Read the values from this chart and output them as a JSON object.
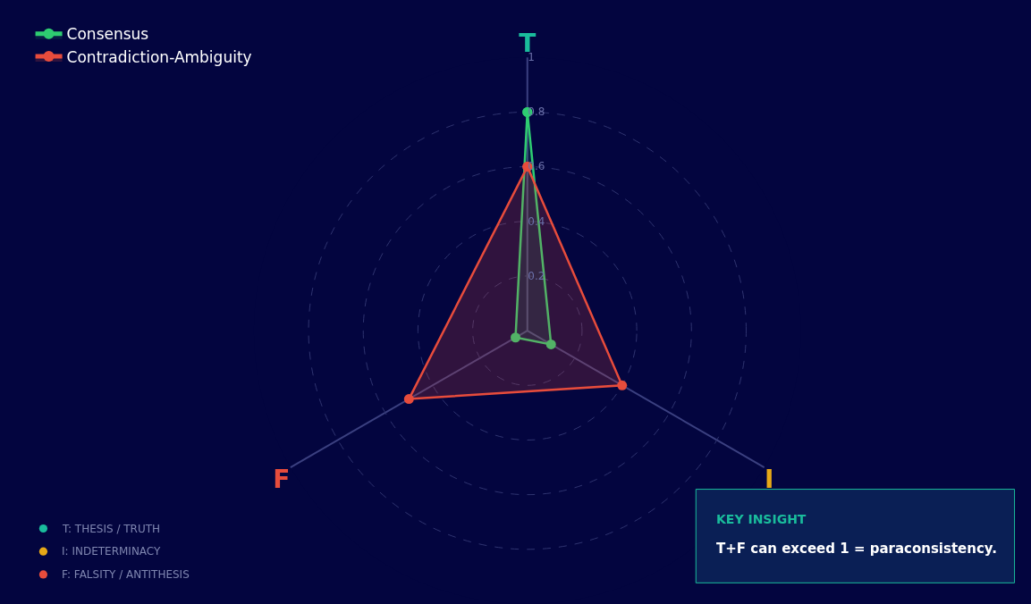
{
  "chart_data": {
    "type": "radar",
    "categories": [
      "T",
      "I",
      "F"
    ],
    "series": [
      {
        "name": "Consensus",
        "color": "#2ecc71",
        "values": [
          0.8,
          0.1,
          0.05
        ]
      },
      {
        "name": "Contradiction-Ambiguity",
        "color": "#e74c3c",
        "values": [
          0.6,
          0.4,
          0.5
        ]
      }
    ],
    "ylim": [
      0,
      1
    ],
    "yticks": [
      0.2,
      0.4,
      0.6,
      0.8,
      1
    ],
    "grid": true,
    "legend": "top left",
    "marker": "circle",
    "annotations": [
      "T: THESIS / TRUTH",
      "I: INDETERMINACY",
      "F: FALSITY / ANTITHESIS",
      "KEY INSIGHT",
      "T+F can exceed 1 = paraconsistency."
    ]
  }
}
